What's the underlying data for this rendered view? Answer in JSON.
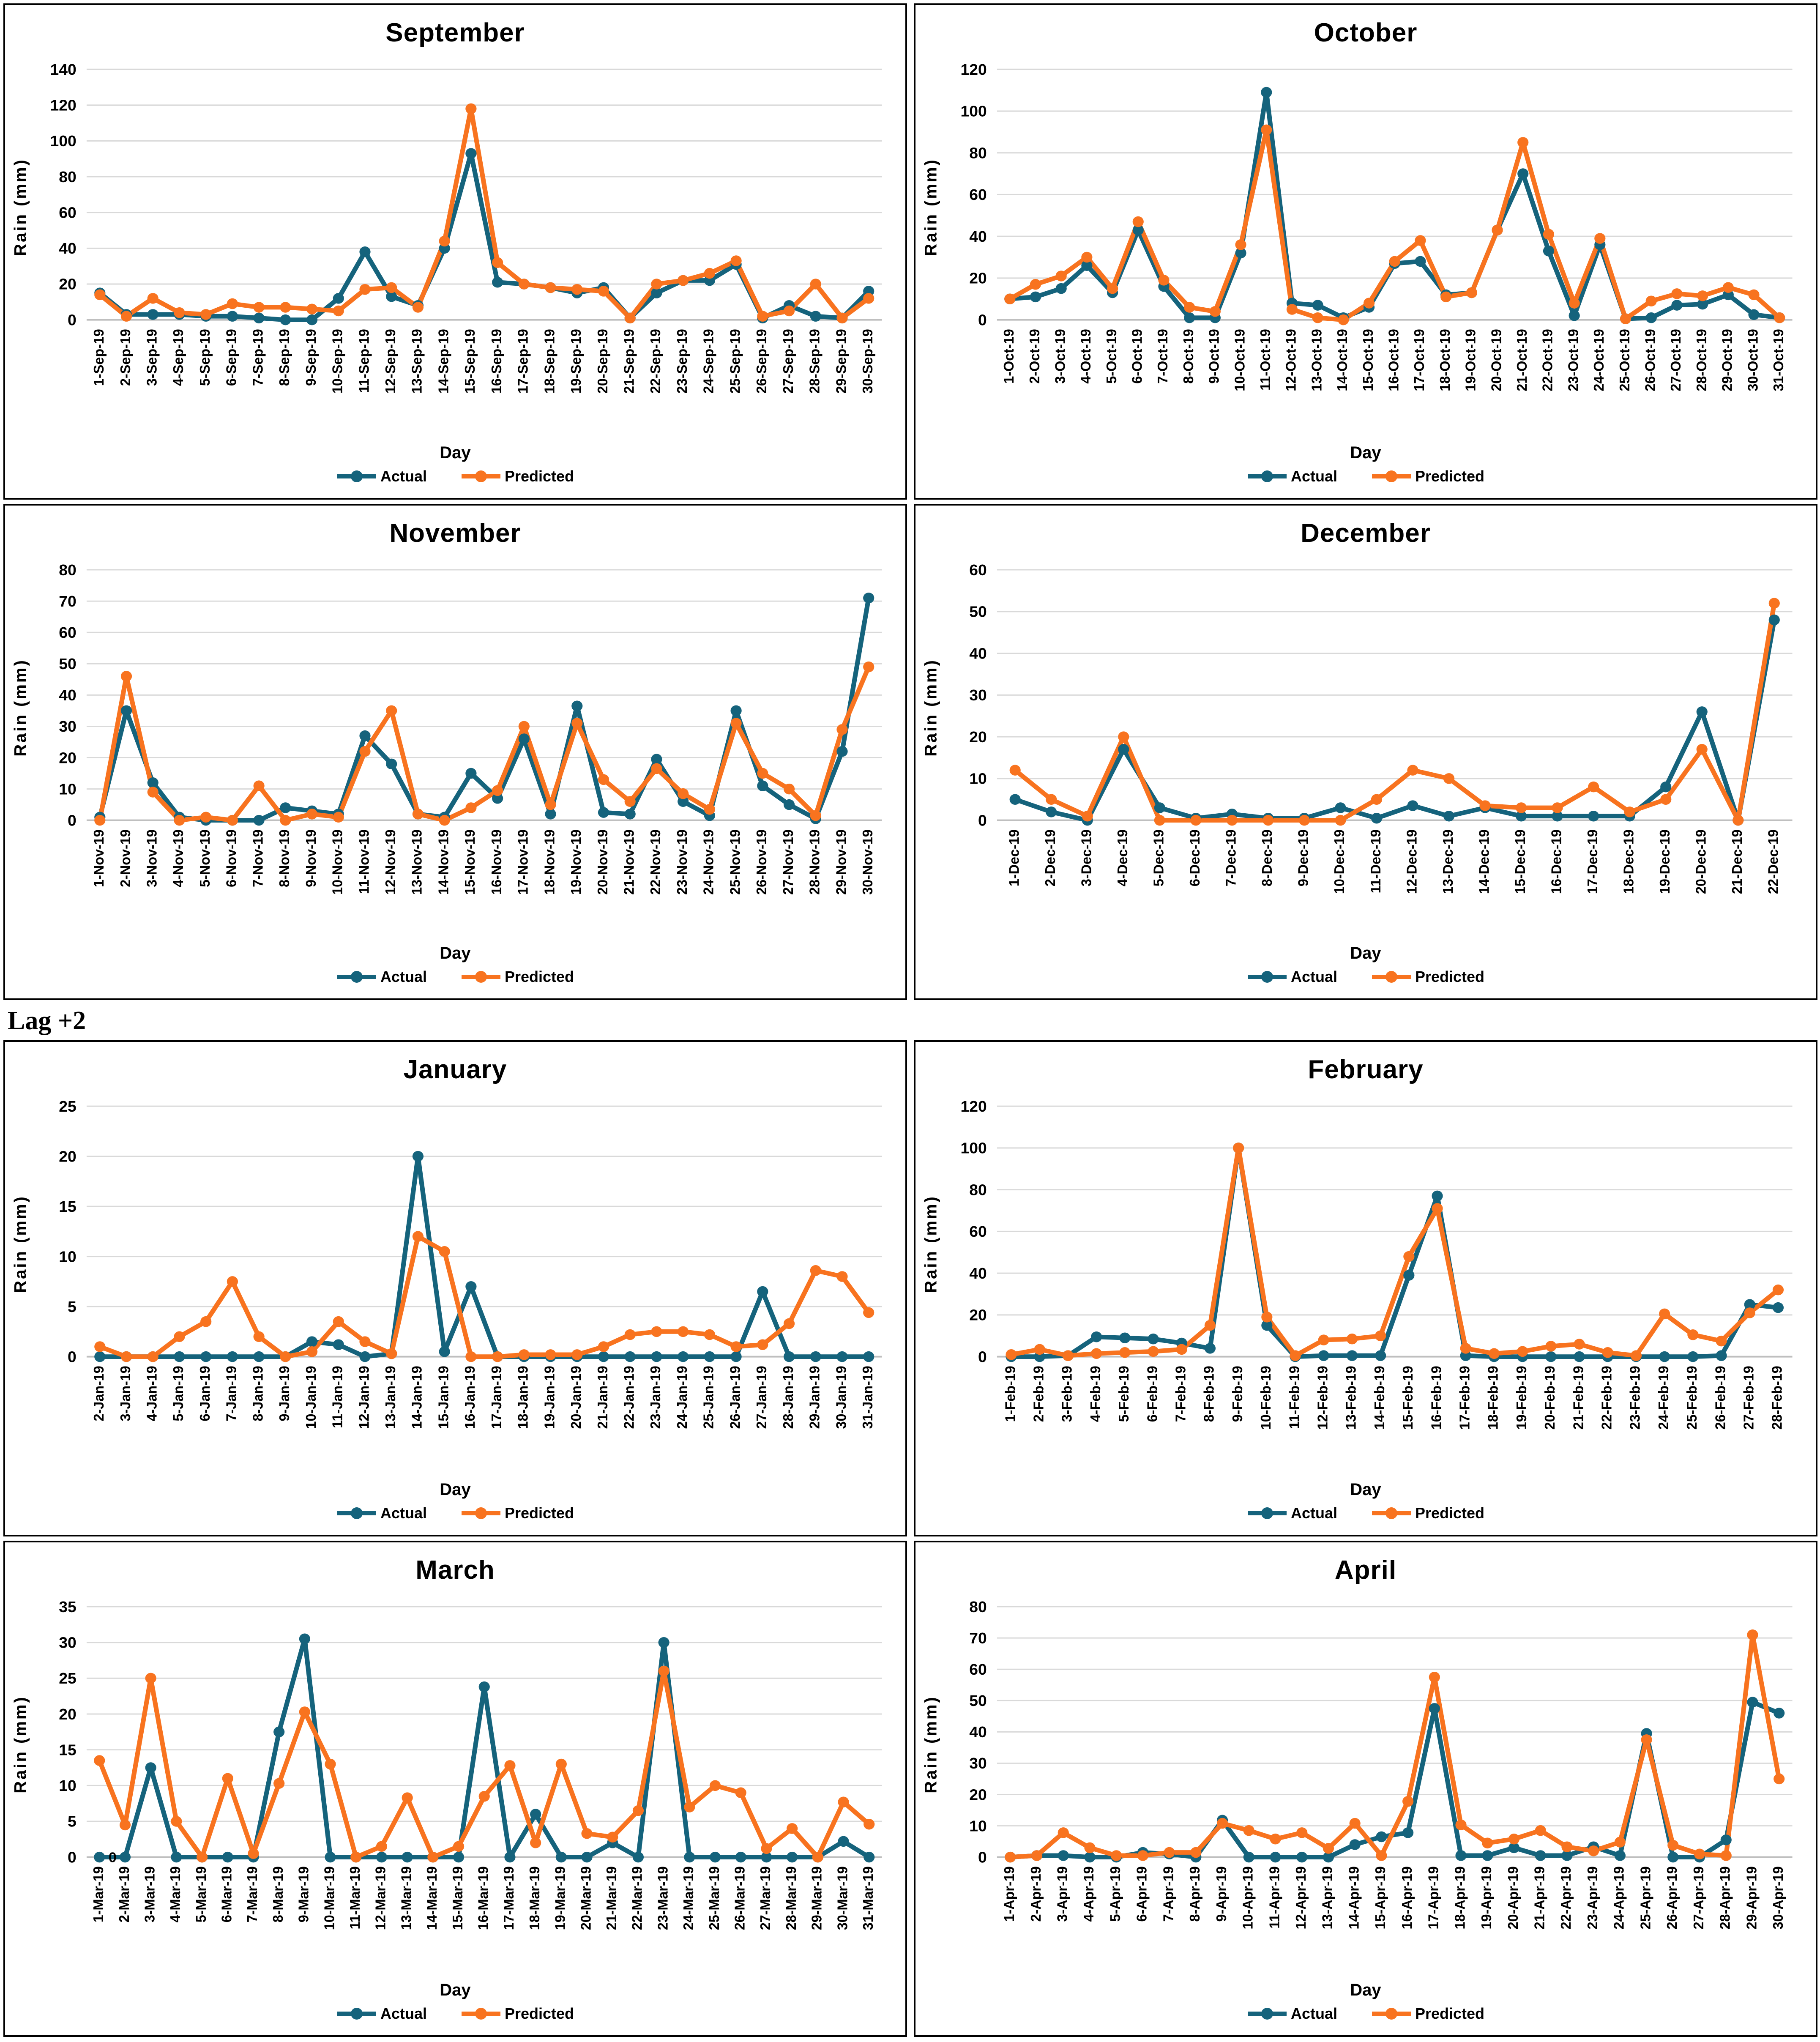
{
  "page": {
    "section_label": "Lag +2"
  },
  "colors": {
    "actual": "#15637C",
    "predicted": "#F8731F",
    "gridline": "#D9D9D9",
    "axis_line": "#BFBFBF",
    "text": "#000000",
    "panel_border": "#000000"
  },
  "chart_data": [
    {
      "type": "line",
      "title": "September",
      "ylabel": "Rain (mm)",
      "xlabel": "Day",
      "ylim": [
        0,
        140
      ],
      "ytick_step": 20,
      "grid": true,
      "legend_position": "bottom",
      "x_labels": [
        "1-Sep-19",
        "2-Sep-19",
        "3-Sep-19",
        "4-Sep-19",
        "5-Sep-19",
        "6-Sep-19",
        "7-Sep-19",
        "8-Sep-19",
        "9-Sep-19",
        "10-Sep-19",
        "11-Sep-19",
        "12-Sep-19",
        "13-Sep-19",
        "14-Sep-19",
        "15-Sep-19",
        "16-Sep-19",
        "17-Sep-19",
        "18-Sep-19",
        "19-Sep-19",
        "20-Sep-19",
        "21-Sep-19",
        "22-Sep-19",
        "23-Sep-19",
        "24-Sep-19",
        "25-Sep-19",
        "26-Sep-19",
        "27-Sep-19",
        "28-Sep-19",
        "29-Sep-19",
        "30-Sep-19"
      ],
      "series": [
        {
          "name": "Actual",
          "color": "#15637C",
          "values": [
            15,
            3,
            3,
            3,
            2,
            2,
            1,
            0,
            0,
            12,
            38,
            13,
            8,
            40,
            93,
            21,
            20,
            18,
            15,
            18,
            1,
            15,
            22,
            22,
            31,
            1,
            8,
            2,
            1,
            16
          ]
        },
        {
          "name": "Predicted",
          "color": "#F8731F",
          "values": [
            14,
            2,
            12,
            4,
            3,
            9,
            7,
            7,
            6,
            5,
            17,
            18,
            7,
            44,
            118,
            32,
            20,
            18,
            17,
            16,
            1,
            20,
            22,
            26,
            33,
            2,
            5,
            20,
            1,
            12
          ]
        }
      ]
    },
    {
      "type": "line",
      "title": "October",
      "ylabel": "Rain (mm)",
      "xlabel": "Day",
      "ylim": [
        0,
        120
      ],
      "ytick_step": 20,
      "grid": true,
      "legend_position": "bottom",
      "x_labels": [
        "1-Oct-19",
        "2-Oct-19",
        "3-Oct-19",
        "4-Oct-19",
        "5-Oct-19",
        "6-Oct-19",
        "7-Oct-19",
        "8-Oct-19",
        "9-Oct-19",
        "10-Oct-19",
        "11-Oct-19",
        "12-Oct-19",
        "13-Oct-19",
        "14-Oct-19",
        "15-Oct-19",
        "16-Oct-19",
        "17-Oct-19",
        "18-Oct-19",
        "19-Oct-19",
        "20-Oct-19",
        "21-Oct-19",
        "22-Oct-19",
        "23-Oct-19",
        "24-Oct-19",
        "25-Oct-19",
        "26-Oct-19",
        "27-Oct-19",
        "28-Oct-19",
        "29-Oct-19",
        "30-Oct-19",
        "31-Oct-19"
      ],
      "series": [
        {
          "name": "Actual",
          "color": "#15637C",
          "values": [
            10,
            11,
            15,
            26,
            13,
            43,
            16,
            1,
            1,
            32,
            109,
            8,
            7,
            1,
            6,
            27,
            28,
            12,
            13,
            43,
            70,
            33,
            2,
            36,
            0.5,
            1,
            7,
            7.5,
            12,
            2.5,
            1
          ]
        },
        {
          "name": "Predicted",
          "color": "#F8731F",
          "values": [
            10,
            17,
            21,
            30,
            15,
            47,
            19,
            6,
            4,
            36,
            91,
            5,
            1,
            0,
            8,
            28,
            38,
            11,
            13,
            43,
            85,
            41,
            8,
            39,
            0.5,
            9,
            12.5,
            11.5,
            15.5,
            12,
            1
          ]
        }
      ]
    },
    {
      "type": "line",
      "title": "November",
      "ylabel": "Rain (mm)",
      "xlabel": "Day",
      "ylim": [
        0,
        80
      ],
      "ytick_step": 10,
      "grid": true,
      "legend_position": "bottom",
      "x_labels": [
        "1-Nov-19",
        "2-Nov-19",
        "3-Nov-19",
        "4-Nov-19",
        "5-Nov-19",
        "6-Nov-19",
        "7-Nov-19",
        "8-Nov-19",
        "9-Nov-19",
        "10-Nov-19",
        "11-Nov-19",
        "12-Nov-19",
        "13-Nov-19",
        "14-Nov-19",
        "15-Nov-19",
        "16-Nov-19",
        "17-Nov-19",
        "18-Nov-19",
        "19-Nov-19",
        "20-Nov-19",
        "21-Nov-19",
        "22-Nov-19",
        "23-Nov-19",
        "24-Nov-19",
        "25-Nov-19",
        "26-Nov-19",
        "27-Nov-19",
        "28-Nov-19",
        "29-Nov-19",
        "30-Nov-19"
      ],
      "series": [
        {
          "name": "Actual",
          "color": "#15637C",
          "values": [
            1,
            35,
            12,
            1,
            0,
            0,
            0,
            4,
            3,
            2,
            27,
            18,
            2,
            1,
            15,
            7,
            26,
            2,
            36.5,
            2.5,
            2,
            19.5,
            6,
            1.5,
            35,
            11,
            5,
            0.5,
            22,
            71
          ]
        },
        {
          "name": "Predicted",
          "color": "#F8731F",
          "values": [
            0,
            46,
            9,
            0,
            1,
            0,
            11,
            0,
            2,
            1,
            22,
            35,
            2,
            0,
            4,
            9.5,
            30,
            5,
            31,
            13,
            6,
            16.5,
            8.5,
            3.5,
            31,
            15,
            10,
            1.5,
            29,
            49
          ]
        }
      ]
    },
    {
      "type": "line",
      "title": "December",
      "ylabel": "Rain (mm)",
      "xlabel": "Day",
      "ylim": [
        0,
        60
      ],
      "ytick_step": 10,
      "grid": true,
      "legend_position": "bottom",
      "x_labels": [
        "1-Dec-19",
        "2-Dec-19",
        "3-Dec-19",
        "4-Dec-19",
        "5-Dec-19",
        "6-Dec-19",
        "7-Dec-19",
        "8-Dec-19",
        "9-Dec-19",
        "10-Dec-19",
        "11-Dec-19",
        "12-Dec-19",
        "13-Dec-19",
        "14-Dec-19",
        "15-Dec-19",
        "16-Dec-19",
        "17-Dec-19",
        "18-Dec-19",
        "19-Dec-19",
        "20-Dec-19",
        "21-Dec-19",
        "22-Dec-19"
      ],
      "series": [
        {
          "name": "Actual",
          "color": "#15637C",
          "values": [
            5,
            2,
            0,
            17,
            3,
            0.5,
            1.5,
            0.5,
            0.5,
            3,
            0.5,
            3.5,
            1,
            3,
            1,
            1,
            1,
            1,
            8,
            26,
            0,
            48
          ]
        },
        {
          "name": "Predicted",
          "color": "#F8731F",
          "values": [
            12,
            5,
            1,
            20,
            0,
            0,
            0,
            0,
            0,
            0,
            5,
            12,
            10,
            3.5,
            3,
            3,
            8,
            2,
            5,
            17,
            0,
            52
          ]
        }
      ]
    },
    {
      "type": "line",
      "title": "January",
      "ylabel": "Rain (mm)",
      "xlabel": "Day",
      "ylim": [
        0,
        25
      ],
      "ytick_step": 5,
      "grid": true,
      "legend_position": "bottom",
      "x_labels": [
        "2-Jan-19",
        "3-Jan-19",
        "4-Jan-19",
        "5-Jan-19",
        "6-Jan-19",
        "7-Jan-19",
        "8-Jan-19",
        "9-Jan-19",
        "10-Jan-19",
        "11-Jan-19",
        "12-Jan-19",
        "13-Jan-19",
        "14-Jan-19",
        "15-Jan-19",
        "16-Jan-19",
        "17-Jan-19",
        "18-Jan-19",
        "19-Jan-19",
        "20-Jan-19",
        "21-Jan-19",
        "22-Jan-19",
        "23-Jan-19",
        "24-Jan-19",
        "25-Jan-19",
        "26-Jan-19",
        "27-Jan-19",
        "28-Jan-19",
        "29-Jan-19",
        "30-Jan-19",
        "31-Jan-19"
      ],
      "series": [
        {
          "name": "Actual",
          "color": "#15637C",
          "values": [
            0,
            0,
            0,
            0,
            0,
            0,
            0,
            0,
            1.5,
            1.2,
            0,
            0.3,
            20,
            0.5,
            7,
            0,
            0,
            0,
            0,
            0,
            0,
            0,
            0,
            0,
            0,
            6.5,
            0,
            0,
            0,
            0
          ]
        },
        {
          "name": "Predicted",
          "color": "#F8731F",
          "values": [
            1,
            0,
            0,
            2,
            3.5,
            7.5,
            2,
            0,
            0.5,
            3.5,
            1.5,
            0.3,
            12,
            10.5,
            0,
            0,
            0.2,
            0.2,
            0.2,
            1,
            2.2,
            2.5,
            2.5,
            2.2,
            1,
            1.2,
            3.3,
            8.6,
            8,
            4.4
          ]
        }
      ]
    },
    {
      "type": "line",
      "title": "February",
      "ylabel": "Rain (mm)",
      "xlabel": "Day",
      "ylim": [
        0,
        120
      ],
      "ytick_step": 20,
      "grid": true,
      "legend_position": "bottom",
      "x_labels": [
        "1-Feb-19",
        "2-Feb-19",
        "3-Feb-19",
        "4-Feb-19",
        "5-Feb-19",
        "6-Feb-19",
        "7-Feb-19",
        "8-Feb-19",
        "9-Feb-19",
        "10-Feb-19",
        "11-Feb-19",
        "12-Feb-19",
        "13-Feb-19",
        "14-Feb-19",
        "15-Feb-19",
        "16-Feb-19",
        "17-Feb-19",
        "18-Feb-19",
        "19-Feb-19",
        "20-Feb-19",
        "21-Feb-19",
        "22-Feb-19",
        "23-Feb-19",
        "24-Feb-19",
        "25-Feb-19",
        "26-Feb-19",
        "27-Feb-19",
        "28-Feb-19"
      ],
      "series": [
        {
          "name": "Actual",
          "color": "#15637C",
          "values": [
            0,
            0,
            0.5,
            9.5,
            9,
            8.5,
            6.5,
            4,
            100,
            15,
            0,
            0.5,
            0.5,
            0.5,
            39,
            77,
            0.5,
            0,
            0,
            0,
            0,
            0,
            0,
            0,
            0,
            0.5,
            25,
            23.5
          ]
        },
        {
          "name": "Predicted",
          "color": "#F8731F",
          "values": [
            1,
            3.5,
            0.5,
            1.5,
            2,
            2.5,
            3.5,
            15,
            100,
            19,
            0.5,
            8,
            8.5,
            10,
            48,
            71,
            4,
            1.5,
            2.5,
            5,
            6,
            2,
            0.5,
            20.5,
            10.5,
            7.5,
            21,
            32
          ]
        }
      ]
    },
    {
      "type": "line",
      "title": "March",
      "ylabel": "Rain (mm)",
      "xlabel": "Day",
      "ylim": [
        0,
        35
      ],
      "ytick_step": 5,
      "grid": true,
      "legend_position": "bottom",
      "x_labels": [
        "1-Mar-19",
        "2-Mar-19",
        "3-Mar-19",
        "4-Mar-19",
        "5-Mar-19",
        "6-Mar-19",
        "7-Mar-19",
        "8-Mar-19",
        "9-Mar-19",
        "10-Mar-19",
        "11-Mar-19",
        "12-Mar-19",
        "13-Mar-19",
        "14-Mar-19",
        "15-Mar-19",
        "16-Mar-19",
        "17-Mar-19",
        "18-Mar-19",
        "19-Mar-19",
        "20-Mar-19",
        "21-Mar-19",
        "22-Mar-19",
        "23-Mar-19",
        "24-Mar-19",
        "25-Mar-19",
        "26-Mar-19",
        "27-Mar-19",
        "28-Mar-19",
        "29-Mar-19",
        "30-Mar-19",
        "31-Mar-19"
      ],
      "series": [
        {
          "name": "Actual",
          "color": "#15637C",
          "values": [
            0,
            0,
            12.5,
            0,
            0,
            0,
            0,
            17.5,
            30.5,
            0,
            0,
            0,
            0,
            0,
            0,
            23.8,
            0,
            6,
            0,
            0,
            2,
            0,
            30,
            0,
            0,
            0,
            0,
            0,
            0,
            2.2,
            0
          ]
        },
        {
          "name": "Predicted",
          "color": "#F8731F",
          "values": [
            13.5,
            4.5,
            25,
            5,
            0,
            11,
            0.5,
            10.3,
            20.3,
            13,
            0,
            1.5,
            8.3,
            0,
            1.5,
            8.5,
            12.8,
            2,
            13,
            3.3,
            2.8,
            6.5,
            26,
            7,
            10,
            9,
            1.2,
            4,
            0,
            7.7,
            4.6
          ]
        }
      ],
      "point_labels": [
        {
          "series": "Actual",
          "index": 1,
          "text": "0"
        }
      ]
    },
    {
      "type": "line",
      "title": "April",
      "ylabel": "Rain (mm)",
      "xlabel": "Day",
      "ylim": [
        0,
        80
      ],
      "ytick_step": 10,
      "grid": true,
      "legend_position": "bottom",
      "x_labels": [
        "1-Apr-19",
        "2-Apr-19",
        "3-Apr-19",
        "4-Apr-19",
        "5-Apr-19",
        "6-Apr-19",
        "7-Apr-19",
        "8-Apr-19",
        "9-Apr-19",
        "10-Apr-19",
        "11-Apr-19",
        "12-Apr-19",
        "13-Apr-19",
        "14-Apr-19",
        "15-Apr-19",
        "16-Apr-19",
        "17-Apr-19",
        "18-Apr-19",
        "19-Apr-19",
        "20-Apr-19",
        "21-Apr-19",
        "22-Apr-19",
        "23-Apr-19",
        "24-Apr-19",
        "25-Apr-19",
        "26-Apr-19",
        "27-Apr-19",
        "28-Apr-19",
        "29-Apr-19",
        "30-Apr-19"
      ],
      "series": [
        {
          "name": "Actual",
          "color": "#15637C",
          "values": [
            0,
            0.5,
            0.5,
            0,
            0,
            1.5,
            1,
            0,
            11.8,
            0,
            0,
            0,
            0,
            4,
            6.5,
            7.8,
            47.5,
            0.5,
            0.5,
            3,
            0.5,
            0.5,
            3.3,
            0.5,
            39.5,
            0,
            0,
            5.5,
            49.5,
            46
          ]
        },
        {
          "name": "Predicted",
          "color": "#F8731F",
          "values": [
            0,
            0.5,
            7.8,
            3,
            0.5,
            0.5,
            1.5,
            1.5,
            10.8,
            8.5,
            5.8,
            7.8,
            2.8,
            10.8,
            0.5,
            17.8,
            57.5,
            10.3,
            4.5,
            5.8,
            8.5,
            3.3,
            2,
            4.8,
            37.5,
            3.8,
            1,
            0.5,
            71,
            25
          ]
        }
      ]
    }
  ]
}
